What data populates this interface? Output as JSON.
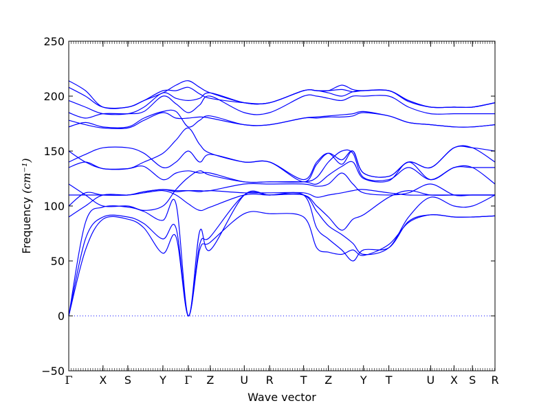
{
  "chart_data": {
    "type": "line",
    "title": "",
    "xlabel": "Wave vector",
    "ylabel": "Frequency",
    "ylabel_unit": "(cm⁻¹)",
    "ylim": [
      -50,
      250
    ],
    "yticks": [
      -50,
      0,
      50,
      100,
      150,
      200,
      250
    ],
    "y_tick_labels": [
      "−50",
      "0",
      "50",
      "100",
      "150",
      "200",
      "250"
    ],
    "xlim": [
      0,
      15.3
    ],
    "k_points": [
      {
        "label": "Γ",
        "x": 0
      },
      {
        "label": "X",
        "x": 1.23
      },
      {
        "label": "S",
        "x": 2.12
      },
      {
        "label": "Y",
        "x": 3.38
      },
      {
        "label": "Γ",
        "x": 4.29
      },
      {
        "label": "Z",
        "x": 5.08
      },
      {
        "label": "U",
        "x": 6.3
      },
      {
        "label": "R",
        "x": 7.21
      },
      {
        "label": "T",
        "x": 8.43
      },
      {
        "label": "Z",
        "x": 9.32
      },
      {
        "label": "Y",
        "x": 10.58
      },
      {
        "label": "T",
        "x": 11.49
      },
      {
        "label": "U",
        "x": 12.99
      },
      {
        "label": "X",
        "x": 13.83
      },
      {
        "label": "S",
        "x": 14.49
      },
      {
        "label": "R",
        "x": 15.3
      }
    ],
    "zero_line": 0,
    "line_color": "#0000ff",
    "series": [
      {
        "x": [
          0,
          0.6,
          1.23,
          2.12,
          2.7,
          3.38,
          3.85,
          4.29,
          4.7,
          5.08,
          6.3,
          7.21,
          8.43,
          8.9,
          9.32,
          9.8,
          10.2,
          10.58,
          11.49,
          12.2,
          12.99,
          13.83,
          14.49,
          15.3
        ],
        "values": [
          0,
          60,
          88,
          88,
          80,
          57,
          72,
          0,
          60,
          67,
          93,
          93,
          90,
          62,
          58,
          56,
          60,
          55,
          65,
          85,
          92,
          90,
          90,
          91
        ]
      },
      {
        "x": [
          0,
          0.6,
          1.23,
          2.12,
          2.7,
          3.38,
          3.85,
          4.29,
          4.7,
          5.08,
          6.3,
          7.21,
          8.43,
          8.9,
          9.32,
          9.8,
          10.2,
          10.58,
          11.49,
          12.2,
          12.99,
          13.83,
          14.49,
          15.3
        ],
        "values": [
          0,
          70,
          90,
          90,
          84,
          70,
          80,
          0,
          65,
          72,
          110,
          110,
          110,
          80,
          70,
          60,
          50,
          60,
          62,
          86,
          92,
          90,
          90,
          91
        ]
      },
      {
        "x": [
          0,
          0.6,
          1.23,
          2.12,
          2.7,
          3.38,
          3.85,
          4.29,
          4.7,
          5.08,
          6.3,
          7.21,
          8.43,
          8.9,
          9.32,
          9.8,
          10.2,
          10.58,
          11.49,
          12.2,
          12.99,
          13.83,
          14.49,
          15.3
        ],
        "values": [
          0,
          85,
          99,
          99,
          95,
          87,
          102,
          0,
          77,
          60,
          110,
          110,
          110,
          95,
          82,
          74,
          66,
          56,
          62,
          90,
          108,
          100,
          100,
          110
        ]
      },
      {
        "x": [
          0,
          0.6,
          1.23,
          2.12,
          2.7,
          3.38,
          3.85,
          4.29,
          4.7,
          5.08,
          6.3,
          7.21,
          8.43,
          8.9,
          9.32,
          9.8,
          10.2,
          10.58,
          11.49,
          12.2,
          12.99,
          13.83,
          14.49,
          15.3
        ],
        "values": [
          90,
          100,
          110,
          110,
          112,
          114,
          110,
          102,
          96,
          99,
          110,
          110,
          110,
          100,
          90,
          78,
          88,
          92,
          108,
          114,
          110,
          110,
          110,
          110
        ]
      },
      {
        "x": [
          0,
          0.6,
          1.23,
          2.12,
          2.7,
          3.38,
          3.85,
          4.29,
          4.7,
          5.08,
          6.3,
          7.21,
          8.43,
          8.9,
          9.32,
          9.8,
          10.2,
          10.58,
          11.49,
          12.2,
          12.99,
          13.83,
          14.49,
          15.3
        ],
        "values": [
          100,
          112,
          110,
          110,
          113,
          115,
          113,
          114,
          113,
          114,
          112,
          112,
          112,
          108,
          110,
          112,
          114,
          115,
          112,
          110,
          110,
          110,
          110,
          110
        ]
      },
      {
        "x": [
          0,
          0.6,
          1.23,
          2.12,
          2.7,
          3.38,
          3.85,
          4.29,
          4.7,
          5.08,
          6.3,
          7.21,
          8.43,
          8.9,
          9.32,
          9.8,
          10.2,
          10.58,
          11.49,
          12.2,
          12.99,
          13.83,
          14.49,
          15.3
        ],
        "values": [
          110,
          110,
          110,
          110,
          113,
          115,
          114,
          114,
          114,
          114,
          120,
          120,
          120,
          118,
          120,
          130,
          120,
          112,
          110,
          112,
          120,
          110,
          110,
          110
        ]
      },
      {
        "x": [
          0,
          0.6,
          1.23,
          2.12,
          2.7,
          3.38,
          3.85,
          4.29,
          4.7,
          5.08,
          6.3,
          7.21,
          8.43,
          8.9,
          9.32,
          9.8,
          10.2,
          10.58,
          11.49,
          12.2,
          12.99,
          13.83,
          14.49,
          15.3
        ],
        "values": [
          120,
          110,
          100,
          100,
          96,
          100,
          115,
          126,
          132,
          128,
          122,
          122,
          122,
          120,
          128,
          136,
          140,
          125,
          123,
          140,
          124,
          135,
          135,
          135
        ]
      },
      {
        "x": [
          0,
          0.6,
          1.23,
          2.12,
          2.7,
          3.38,
          3.85,
          4.29,
          4.7,
          5.08,
          6.3,
          7.21,
          8.43,
          8.9,
          9.32,
          9.8,
          10.2,
          10.58,
          11.49,
          12.2,
          12.99,
          13.83,
          14.49,
          15.3
        ],
        "values": [
          135,
          140,
          134,
          134,
          136,
          124,
          130,
          132,
          130,
          130,
          122,
          122,
          122,
          126,
          140,
          150,
          148,
          126,
          124,
          135,
          124,
          135,
          135,
          120
        ]
      },
      {
        "x": [
          0,
          0.6,
          1.23,
          2.12,
          2.7,
          3.38,
          3.85,
          4.29,
          4.7,
          5.08,
          6.3,
          7.21,
          8.43,
          8.9,
          9.32,
          9.8,
          10.2,
          10.58,
          11.49,
          12.2,
          12.99,
          13.83,
          14.49,
          15.3
        ],
        "values": [
          140,
          147,
          153,
          153,
          148,
          135,
          140,
          150,
          140,
          147,
          140,
          140,
          122,
          138,
          148,
          142,
          150,
          130,
          127,
          140,
          135,
          153,
          153,
          140
        ]
      },
      {
        "x": [
          0,
          0.6,
          1.23,
          2.12,
          2.7,
          3.38,
          3.85,
          4.29,
          4.7,
          5.08,
          6.3,
          7.21,
          8.43,
          8.9,
          9.32,
          9.8,
          10.2,
          10.58,
          11.49,
          12.2,
          12.99,
          13.83,
          14.49,
          15.3
        ],
        "values": [
          150,
          140,
          134,
          134,
          140,
          148,
          160,
          171,
          156,
          148,
          140,
          140,
          124,
          140,
          148,
          138,
          150,
          130,
          127,
          140,
          135,
          153,
          153,
          150
        ]
      },
      {
        "x": [
          0,
          0.6,
          1.23,
          2.12,
          2.7,
          3.38,
          3.85,
          4.29,
          4.7,
          5.08,
          6.3,
          7.21,
          8.43,
          8.9,
          9.32,
          9.8,
          10.2,
          10.58,
          11.49,
          12.2,
          12.99,
          13.83,
          14.49,
          15.3
        ],
        "values": [
          172,
          176,
          172,
          172,
          180,
          186,
          186,
          172,
          178,
          182,
          174,
          174,
          180,
          181,
          182,
          183,
          184,
          186,
          182,
          176,
          174,
          172,
          172,
          174
        ]
      },
      {
        "x": [
          0,
          0.6,
          1.23,
          2.12,
          2.7,
          3.38,
          3.85,
          4.29,
          4.7,
          5.08,
          6.3,
          7.21,
          8.43,
          8.9,
          9.32,
          9.8,
          10.2,
          10.58,
          11.49,
          12.2,
          12.99,
          13.83,
          14.49,
          15.3
        ],
        "values": [
          178,
          174,
          171,
          171,
          178,
          185,
          180,
          180,
          181,
          180,
          174,
          174,
          180,
          180,
          181,
          181,
          182,
          185,
          182,
          176,
          174,
          172,
          172,
          174
        ]
      },
      {
        "x": [
          0,
          0.6,
          1.23,
          2.12,
          2.7,
          3.38,
          3.85,
          4.29,
          4.7,
          5.08,
          6.3,
          7.21,
          8.43,
          8.9,
          9.32,
          9.8,
          10.2,
          10.58,
          11.49,
          12.2,
          12.99,
          13.83,
          14.49,
          15.3
        ],
        "values": [
          185,
          180,
          184,
          184,
          186,
          200,
          193,
          185,
          192,
          200,
          185,
          185,
          200,
          200,
          198,
          196,
          200,
          200,
          200,
          190,
          184,
          184,
          184,
          184
        ]
      },
      {
        "x": [
          0,
          0.6,
          1.23,
          2.12,
          2.7,
          3.38,
          3.85,
          4.29,
          4.7,
          5.08,
          6.3,
          7.21,
          8.43,
          8.9,
          9.32,
          9.8,
          10.2,
          10.58,
          11.49,
          12.2,
          12.99,
          13.83,
          14.49,
          15.3
        ],
        "values": [
          196,
          190,
          184,
          184,
          190,
          203,
          198,
          196,
          198,
          203,
          194,
          194,
          205,
          205,
          203,
          200,
          204,
          205,
          205,
          195,
          190,
          190,
          190,
          194
        ]
      },
      {
        "x": [
          0,
          0.6,
          1.23,
          2.12,
          2.7,
          3.38,
          3.85,
          4.29,
          4.7,
          5.08,
          6.3,
          7.21,
          8.43,
          8.9,
          9.32,
          9.8,
          10.2,
          10.58,
          11.49,
          12.2,
          12.99,
          13.83,
          14.49,
          15.3
        ],
        "values": [
          208,
          200,
          190,
          190,
          196,
          205,
          205,
          208,
          202,
          198,
          194,
          194,
          205,
          205,
          205,
          206,
          204,
          205,
          205,
          196,
          190,
          190,
          190,
          194
        ]
      },
      {
        "x": [
          0,
          0.6,
          1.23,
          2.12,
          2.7,
          3.38,
          3.85,
          4.29,
          4.7,
          5.08,
          6.3,
          7.21,
          8.43,
          8.9,
          9.32,
          9.8,
          10.2,
          10.58,
          11.49,
          12.2,
          12.99,
          13.83,
          14.49,
          15.3
        ],
        "values": [
          214,
          205,
          190,
          190,
          196,
          203,
          210,
          214,
          208,
          203,
          194,
          194,
          205,
          205,
          205,
          210,
          206,
          205,
          205,
          196,
          190,
          190,
          190,
          194
        ]
      }
    ]
  }
}
